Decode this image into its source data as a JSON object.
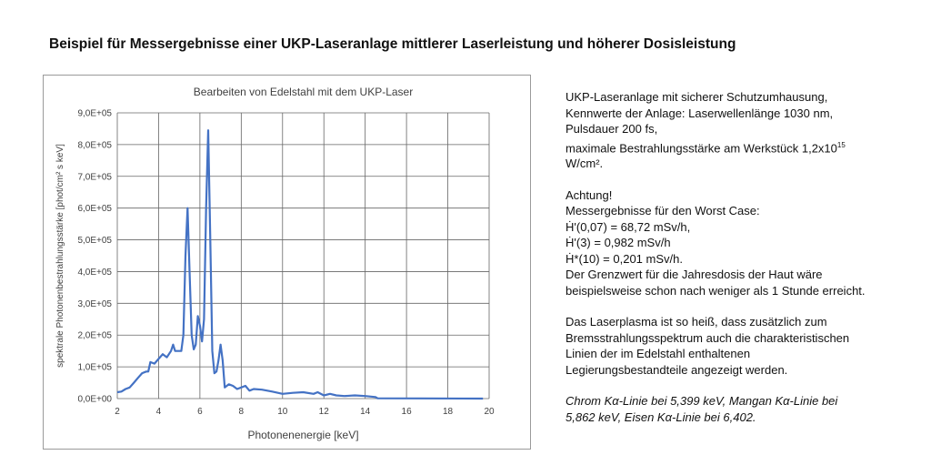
{
  "heading": "Beispiel für Messergebnisse einer UKP-Laseranlage mittlerer Laserleistung und höherer Dosisleistung",
  "chart_data": {
    "type": "line",
    "title": "Bearbeiten von Edelstahl mit dem UKP-Laser",
    "xlabel": "Photonenenergie  [keV]",
    "ylabel": "spektrale Photonenbestrahlungsstärke [phot/cm² s keV]",
    "xlim": [
      2,
      20
    ],
    "ylim": [
      0,
      900000
    ],
    "xticks": [
      "2",
      "4",
      "6",
      "8",
      "10",
      "12",
      "14",
      "16",
      "18",
      "20"
    ],
    "yticks": [
      "0,0E+00",
      "1,0E+05",
      "2,0E+05",
      "3,0E+05",
      "4,0E+05",
      "5,0E+05",
      "6,0E+05",
      "7,0E+05",
      "8,0E+05",
      "9,0E+05"
    ],
    "grid": true,
    "color": "#4472c4",
    "series": [
      {
        "x": [
          2.0,
          2.2,
          2.4,
          2.6,
          2.8,
          3.0,
          3.2,
          3.4,
          3.5,
          3.6,
          3.8,
          4.0,
          4.2,
          4.4,
          4.6,
          4.7,
          4.8,
          5.0,
          5.1,
          5.2,
          5.3,
          5.4,
          5.5,
          5.6,
          5.7,
          5.8,
          5.9,
          6.0,
          6.1,
          6.2,
          6.3,
          6.4,
          6.5,
          6.6,
          6.7,
          6.8,
          6.9,
          7.0,
          7.1,
          7.2,
          7.4,
          7.6,
          7.8,
          8.0,
          8.2,
          8.4,
          8.6,
          9.0,
          9.5,
          10.0,
          10.5,
          11.0,
          11.5,
          11.7,
          12.0,
          12.3,
          12.6,
          13.0,
          13.5,
          14.0,
          14.5,
          14.6,
          19.7
        ],
        "y": [
          20000,
          22000,
          30000,
          35000,
          50000,
          65000,
          80000,
          85000,
          85000,
          115000,
          110000,
          125000,
          140000,
          130000,
          150000,
          170000,
          150000,
          150000,
          150000,
          200000,
          450000,
          600000,
          400000,
          200000,
          155000,
          170000,
          260000,
          230000,
          180000,
          250000,
          600000,
          845000,
          500000,
          150000,
          80000,
          85000,
          120000,
          170000,
          120000,
          35000,
          45000,
          40000,
          30000,
          35000,
          40000,
          25000,
          30000,
          28000,
          22000,
          15000,
          18000,
          20000,
          15000,
          20000,
          10000,
          15000,
          10000,
          8000,
          10000,
          8000,
          5000,
          1000,
          0
        ]
      }
    ]
  },
  "side": {
    "p1": [
      "UKP-Laseranlage mit sicherer Schutzumhausung,",
      "Kennwerte der Anlage: Laserwellenlänge 1030 nm,",
      "Pulsdauer 200 fs,"
    ],
    "p1_last_pre": "maximale Bestrahlungsstärke am Werkstück 1,2x10",
    "p1_sup": "15",
    "p1_last_post": "W/cm².",
    "p2": [
      "Achtung!",
      "Messergebnisse für den Worst Case:",
      "Ḣ'(0,07) = 68,72 mSv/h,",
      "Ḣ'(3) = 0,982 mSv/h",
      "Ḣ*(10) = 0,201 mSv/h.",
      "Der Grenzwert für die Jahresdosis der Haut wäre",
      "beispielsweise schon nach weniger als 1 Stunde erreicht."
    ],
    "p3": [
      "Das Laserplasma ist so heiß, dass zusätzlich zum",
      "Bremsstrahlungsspektrum auch die charakteristischen",
      "Linien der im Edelstahl enthaltenen",
      "Legierungsbestandteile angezeigt werden."
    ],
    "p4": [
      "Chrom Kα-Linie bei 5,399 keV, Mangan Kα-Linie bei",
      "5,862 keV, Eisen Kα-Linie bei 6,402."
    ]
  }
}
